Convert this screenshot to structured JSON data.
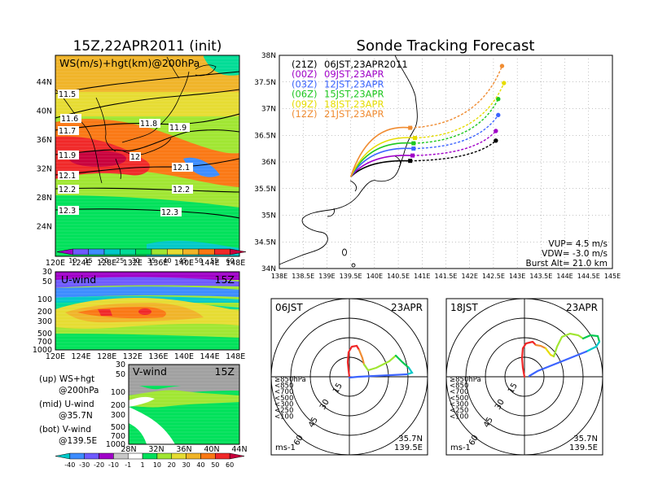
{
  "header": {
    "left_title": "15Z,22APR2011 (init)",
    "right_title": "Sonde Tracking Forecast"
  },
  "map_panel": {
    "label": "WS(m/s)+hgt(km)@200hPa",
    "lat_ticks": [
      "44N",
      "40N",
      "36N",
      "32N",
      "28N",
      "24N"
    ],
    "lon_ticks": [
      "120E",
      "124E",
      "128E",
      "132E",
      "136E",
      "140E",
      "144E",
      "148E"
    ],
    "contour_labels": [
      "11.5",
      "11.6",
      "11.7",
      "11.8",
      "11.9",
      "11.9",
      "12",
      "12.1",
      "12.1",
      "12.2",
      "12.2",
      "12.3",
      "12.3"
    ],
    "colorbar": [
      "10",
      "15",
      "20",
      "25",
      "30",
      "35",
      "40",
      "45",
      "50",
      "55",
      "60"
    ],
    "colorbar_colors": [
      "#a000c8",
      "#6e5aff",
      "#3c8cff",
      "#00c8c8",
      "#00dc96",
      "#00e15a",
      "#a0e632",
      "#e6dc32",
      "#f0b428",
      "#fa7814",
      "#f02828",
      "#c8003c"
    ]
  },
  "uwind_panel": {
    "label": "U-wind",
    "time": "15Z",
    "levels": [
      "30",
      "50",
      "100",
      "200",
      "300",
      "500",
      "700",
      "1000"
    ],
    "lon_ticks": [
      "120E",
      "124E",
      "128E",
      "132E",
      "136E",
      "140E",
      "144E",
      "148E"
    ]
  },
  "vwind_panel": {
    "label": "V-wind",
    "time": "15Z",
    "levels": [
      "30",
      "50",
      "100",
      "200",
      "300",
      "500",
      "700",
      "1000"
    ],
    "lat_ticks": [
      "28N",
      "32N",
      "36N",
      "40N",
      "44N"
    ],
    "colorbar": [
      "-40",
      "-30",
      "-20",
      "-10",
      "-1",
      "1",
      "10",
      "20",
      "30",
      "40",
      "50",
      "60"
    ],
    "colorbar_colors": [
      "#00c8c8",
      "#3c8cff",
      "#6e5aff",
      "#a000c8",
      "#c8c8c8",
      "#ffffff",
      "#00e15a",
      "#a0e632",
      "#e6dc32",
      "#f0b428",
      "#fa7814",
      "#f02828",
      "#c8003c"
    ]
  },
  "legend_notes": [
    {
      "a": "(up) WS+hgt",
      "b": "@200hPa"
    },
    {
      "a": "(mid) U-wind",
      "b": "@35.7N"
    },
    {
      "a": "(bot) V-wind",
      "b": "@139.5E"
    }
  ],
  "tracking_panel": {
    "entries": [
      {
        "z": "(21Z)",
        "label": "06JST,23APR2011",
        "color": "#000000"
      },
      {
        "z": "(00Z)",
        "label": "09JST,23APR",
        "color": "#a000c8"
      },
      {
        "z": "(03Z)",
        "label": "12JST,23APR",
        "color": "#3c64ff"
      },
      {
        "z": "(06Z)",
        "label": "15JST,23APR",
        "color": "#1ec81e"
      },
      {
        "z": "(09Z)",
        "label": "18JST,23APR",
        "color": "#e6dc00"
      },
      {
        "z": "(12Z)",
        "label": "21JST,23APR",
        "color": "#f08c32"
      }
    ],
    "lat_ticks": [
      "38N",
      "37.5N",
      "37N",
      "36.5N",
      "36N",
      "35.5N",
      "35N",
      "34.5N",
      "34N"
    ],
    "lon_ticks": [
      "138E",
      "138.5E",
      "139E",
      "139.5E",
      "140E",
      "140.5E",
      "141E",
      "141.5E",
      "142E",
      "142.5E",
      "143E",
      "143.5E",
      "144E",
      "144.5E",
      "145E"
    ],
    "params": [
      "VUP=  4.5 m/s",
      "VDW= -3.0 m/s",
      "Burst Alt= 21.0 km"
    ]
  },
  "hodographs": [
    {
      "time": "06JST",
      "date": "23APR",
      "rings": [
        "15",
        "30",
        "45",
        "60"
      ],
      "lat": "35.7N",
      "lon": "139.5E",
      "unit": "ms-1",
      "pressure_legend": [
        "≥850hPa",
        "<850",
        "<700",
        "<500",
        "<300",
        "<250",
        "<100"
      ]
    },
    {
      "time": "18JST",
      "date": "23APR",
      "rings": [
        "15",
        "30",
        "45",
        "60"
      ],
      "lat": "35.7N",
      "lon": "139.5E",
      "unit": "ms-1",
      "pressure_legend": [
        "≥850hPa",
        "<850",
        "<700",
        "<500",
        "<300",
        "<250",
        "<100"
      ]
    }
  ],
  "chart_data": {
    "type": "line",
    "title": "Sonde Tracking Forecast",
    "launch": {
      "lon": 139.5,
      "lat": 35.72
    },
    "xlim": [
      138,
      145
    ],
    "ylim": [
      34,
      38
    ],
    "series": [
      {
        "name": "06JST,23APR2011",
        "color": "#000000",
        "burst": [
          140.75,
          36.02
        ],
        "land": [
          142.55,
          36.4
        ]
      },
      {
        "name": "09JST,23APR",
        "color": "#a000c8",
        "burst": [
          140.8,
          36.12
        ],
        "land": [
          142.55,
          36.58
        ]
      },
      {
        "name": "12JST,23APR",
        "color": "#3c64ff",
        "burst": [
          140.82,
          36.25
        ],
        "land": [
          142.6,
          36.88
        ]
      },
      {
        "name": "15JST,23APR",
        "color": "#1ec81e",
        "burst": [
          140.82,
          36.35
        ],
        "land": [
          142.6,
          37.18
        ]
      },
      {
        "name": "18JST,23APR",
        "color": "#e6dc00",
        "burst": [
          140.85,
          36.45
        ],
        "land": [
          142.72,
          37.48
        ]
      },
      {
        "name": "21JST,23APR",
        "color": "#f08c32",
        "burst": [
          140.75,
          36.64
        ],
        "land": [
          142.68,
          37.8
        ]
      }
    ]
  }
}
